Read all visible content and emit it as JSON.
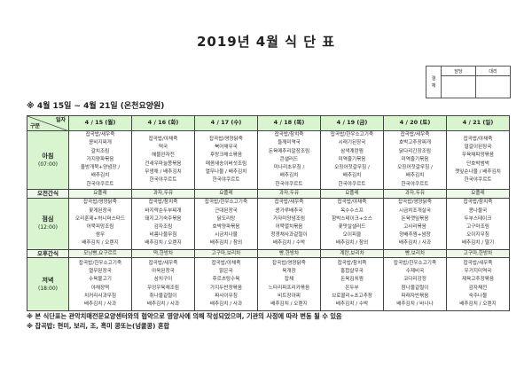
{
  "title": "2019년 4월 식 단 표",
  "approval": {
    "label": "결재",
    "cols": [
      "담당",
      "대리"
    ]
  },
  "subtitle": "※ 4월 15일 ~ 4월 21일 (온천요양원)",
  "header": {
    "corner_top": "일자",
    "corner_bottom": "구분",
    "dates": [
      "4 / 15 (월)",
      "4 / 16 (화)",
      "4 / 17 (수)",
      "4 / 18 (목)",
      "4 / 19 (금)",
      "4 / 20 (토)",
      "4 / 21 (일)"
    ]
  },
  "colors": {
    "header_bg": "#d9f5cf",
    "snack_bg": "#eef9ea"
  },
  "rows": [
    {
      "type": "meal",
      "label": "아침",
      "time": "(07:00)",
      "cells": [
        [
          "잡곡밥/새우죽",
          "콩비지찌개",
          "갈치조림",
          "가지양파볶음",
          "올방개묵+양념장 /",
          "배추김치",
          "한국야쿠르트"
        ],
        [
          "잡곡밥/야채죽",
          "떡국",
          "해물완자전",
          "건새우마늘쫑볶음",
          "무생채 / 배추김치",
          "한국야쿠르트"
        ],
        [
          "잡곡밥/영양닭죽",
          "북어채무국",
          "후랑크채소볶음",
          "매콤새송이버섯조림",
          "열무나물 / 배추김치",
          "한국야쿠르트"
        ],
        [
          "잡곡밥/참치죽",
          "들깨미역국",
          "돈육메추리알장조림",
          "콘샐러드",
          "미나리초무침 /",
          "배추김치",
          "한국야쿠르트"
        ],
        [
          "잡곡밥/한우소고기죽",
          "시래기된장국",
          "삼색계란찜",
          "미역줄기볶음",
          "오징어젓갈무침 /",
          "배추김치",
          "한국야쿠르트"
        ],
        [
          "잡곡밥/새우죽",
          "호박고추장찌개",
          "닭다리간장조림",
          "미역줄기볶음",
          "오징어젓갈무침 /",
          "배추김치",
          "한국야쿠르트"
        ],
        [
          "잡곡밥/야채죽",
          "얼갈이된장국",
          "우육채피망볶음",
          "단호박범벅",
          "깻잎순나물 / 배추김치",
          "한국야쿠르트"
        ]
      ]
    },
    {
      "type": "snack",
      "label": "오전간식",
      "cells": [
        "요플레",
        "과자,두유",
        "요플레",
        "과자,두유",
        "요플레",
        "과자,두유",
        "요플레"
      ]
    },
    {
      "type": "meal",
      "label": "점심",
      "time": "(12:00)",
      "cells": [
        [
          "잡곡밥/영양닭죽",
          "꽃게된장국",
          "오리훈제+허니머스타드",
          "어묵피망조림",
          "쌈무",
          "배추김치 / 오렌지"
        ],
        [
          "잡곡밥/참치죽",
          "바지락순두부찌개",
          "돼지고기숙주볶음",
          "감자조림",
          "비름나물무침",
          "배추김치 / 오렌지"
        ],
        [
          "잡곡밥/한우소고기죽",
          "근대된장국",
          "닭도리탕",
          "호박양파볶음",
          "시금치나물",
          "배추김치 / 참외"
        ],
        [
          "잡곡밥/새우죽",
          "콩가루배추국",
          "가자미양념조림",
          "어묵멸치볶음",
          "청경채사과겉절이",
          "배추김치 / 수박"
        ],
        [
          "잡곡밥/야채죽",
          "옥수수스프",
          "함박스테이크+소스",
          "꽃맛살샐러드",
          "오이피클",
          "배추김치 / 참외"
        ],
        [
          "잡곡밥/영양닭죽",
          "시금치조개살국",
          "돈육깻잎볶음",
          "고사리볶음",
          "양배추찜+쌈장",
          "배추김치 / 사과"
        ],
        [
          "잡곡밥/참치죽",
          "콩나물국",
          "두부스테이크",
          "고구마조림",
          "오이지무침",
          "배추김치 / 딸기"
        ]
      ]
    },
    {
      "type": "snack",
      "label": "오후간식",
      "cells": [
        "모닝빵,요구르트",
        "떡,한방차",
        "고구마,보리차",
        "빵,한방차",
        "계란,보리차",
        "빵,보리차",
        "고구마,한방차"
      ]
    },
    {
      "type": "meal",
      "label": "저녁",
      "time": "(18:00)",
      "cells": [
        [
          "잡곡밥/한우소고기죽",
          "열무된장국",
          "수육불고기",
          "야채장떡",
          "치커리사과무침",
          "배추김치 / 사과"
        ],
        [
          "잡곡밥/새우죽",
          "아욱된장국",
          "삼치구이",
          "우엉우육채조림",
          "취나물겉절이",
          "배추김치 / 사과"
        ],
        [
          "잡곡밥/야채죽",
          "맑은국",
          "후르츠탕수육",
          "가지두반장볶음",
          "짜사이무침",
          "배추김치 / 사과"
        ],
        [
          "잡곡밥/영양닭죽",
          "육개장",
          "잡채",
          "느타리파프리카볶음",
          "비트장아찌",
          "배추김치 / 오렌지"
        ],
        [
          "잡곡밥/참치죽",
          "홍합살무국",
          "돈육김치찜",
          "온두부",
          "브로콜리+초고추장",
          "배추김치 / 수박"
        ],
        [
          "잡곡밥/한우소고기죽",
          "수제비국",
          "코다리강정",
          "참나물겉절이",
          "파래자반볶음",
          "배추김치 / 바나나"
        ],
        [
          "잡곡밥/새우죽",
          "우거지미역국",
          "제육고추장볶음",
          "감자채전",
          "숙주나물",
          "배추김치 / 오렌지"
        ]
      ]
    }
  ],
  "notes": [
    "※ 본 식단표는 관악치매전문요양센터와의 협약으로 영양사에 의해 작성되었으며, 기관의 사정에 따라 변동 될 수 있음",
    "※ 잡곡밥: 현미, 보리, 조, 흑미 콩또는(넝쿨콩) 혼합"
  ]
}
